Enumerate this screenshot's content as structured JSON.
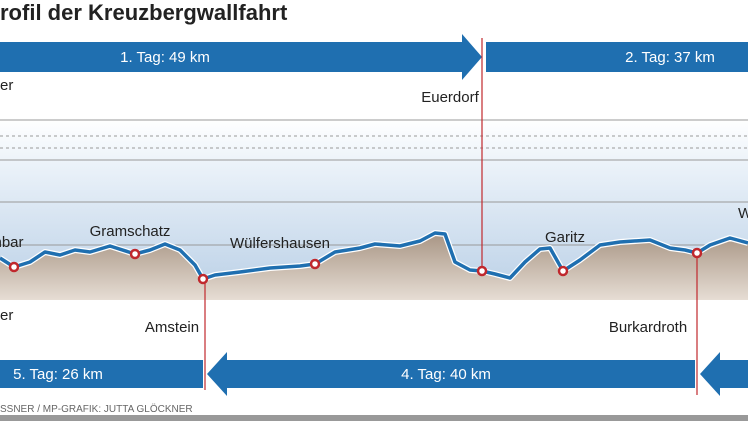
{
  "header": {
    "title": "rofil der Kreuzbergwallfahrt"
  },
  "stages": {
    "top": [
      "1. Tag: 49 km",
      "2. Tag:  37 km"
    ],
    "bottom": [
      "5. Tag: 26 km",
      "4. Tag: 40 km"
    ]
  },
  "places": {
    "top": [
      "er",
      "Euerdorf"
    ],
    "profile": [
      "imbar",
      "Gramschatz",
      "Wülfershausen",
      "Garitz",
      "W"
    ],
    "bottom": [
      "er",
      "Amstein",
      "Burkardroth"
    ]
  },
  "credit": "SSNER / MP-GRAFIK: JUTTA GLÖCKNER"
}
